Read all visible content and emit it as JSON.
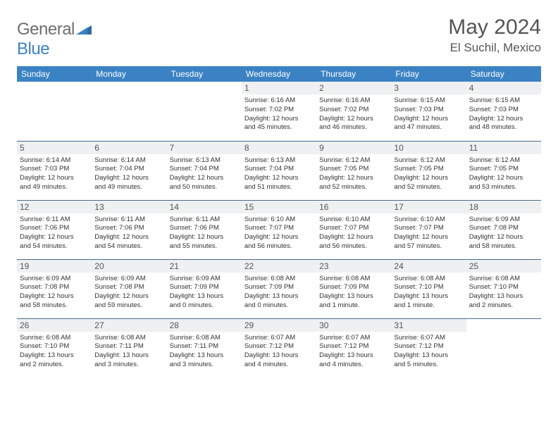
{
  "logo": {
    "line1": "General",
    "line2": "Blue"
  },
  "title": "May 2024",
  "location": "El Suchil, Mexico",
  "header_bg": "#3b82c4",
  "day_headers": [
    "Sunday",
    "Monday",
    "Tuesday",
    "Wednesday",
    "Thursday",
    "Friday",
    "Saturday"
  ],
  "weeks": [
    [
      {
        "empty": true
      },
      {
        "empty": true
      },
      {
        "empty": true
      },
      {
        "num": "1",
        "sunrise": "Sunrise: 6:16 AM",
        "sunset": "Sunset: 7:02 PM",
        "day1": "Daylight: 12 hours",
        "day2": "and 45 minutes."
      },
      {
        "num": "2",
        "sunrise": "Sunrise: 6:16 AM",
        "sunset": "Sunset: 7:02 PM",
        "day1": "Daylight: 12 hours",
        "day2": "and 46 minutes."
      },
      {
        "num": "3",
        "sunrise": "Sunrise: 6:15 AM",
        "sunset": "Sunset: 7:03 PM",
        "day1": "Daylight: 12 hours",
        "day2": "and 47 minutes."
      },
      {
        "num": "4",
        "sunrise": "Sunrise: 6:15 AM",
        "sunset": "Sunset: 7:03 PM",
        "day1": "Daylight: 12 hours",
        "day2": "and 48 minutes."
      }
    ],
    [
      {
        "num": "5",
        "sunrise": "Sunrise: 6:14 AM",
        "sunset": "Sunset: 7:03 PM",
        "day1": "Daylight: 12 hours",
        "day2": "and 49 minutes."
      },
      {
        "num": "6",
        "sunrise": "Sunrise: 6:14 AM",
        "sunset": "Sunset: 7:04 PM",
        "day1": "Daylight: 12 hours",
        "day2": "and 49 minutes."
      },
      {
        "num": "7",
        "sunrise": "Sunrise: 6:13 AM",
        "sunset": "Sunset: 7:04 PM",
        "day1": "Daylight: 12 hours",
        "day2": "and 50 minutes."
      },
      {
        "num": "8",
        "sunrise": "Sunrise: 6:13 AM",
        "sunset": "Sunset: 7:04 PM",
        "day1": "Daylight: 12 hours",
        "day2": "and 51 minutes."
      },
      {
        "num": "9",
        "sunrise": "Sunrise: 6:12 AM",
        "sunset": "Sunset: 7:05 PM",
        "day1": "Daylight: 12 hours",
        "day2": "and 52 minutes."
      },
      {
        "num": "10",
        "sunrise": "Sunrise: 6:12 AM",
        "sunset": "Sunset: 7:05 PM",
        "day1": "Daylight: 12 hours",
        "day2": "and 52 minutes."
      },
      {
        "num": "11",
        "sunrise": "Sunrise: 6:12 AM",
        "sunset": "Sunset: 7:05 PM",
        "day1": "Daylight: 12 hours",
        "day2": "and 53 minutes."
      }
    ],
    [
      {
        "num": "12",
        "sunrise": "Sunrise: 6:11 AM",
        "sunset": "Sunset: 7:06 PM",
        "day1": "Daylight: 12 hours",
        "day2": "and 54 minutes."
      },
      {
        "num": "13",
        "sunrise": "Sunrise: 6:11 AM",
        "sunset": "Sunset: 7:06 PM",
        "day1": "Daylight: 12 hours",
        "day2": "and 54 minutes."
      },
      {
        "num": "14",
        "sunrise": "Sunrise: 6:11 AM",
        "sunset": "Sunset: 7:06 PM",
        "day1": "Daylight: 12 hours",
        "day2": "and 55 minutes."
      },
      {
        "num": "15",
        "sunrise": "Sunrise: 6:10 AM",
        "sunset": "Sunset: 7:07 PM",
        "day1": "Daylight: 12 hours",
        "day2": "and 56 minutes."
      },
      {
        "num": "16",
        "sunrise": "Sunrise: 6:10 AM",
        "sunset": "Sunset: 7:07 PM",
        "day1": "Daylight: 12 hours",
        "day2": "and 56 minutes."
      },
      {
        "num": "17",
        "sunrise": "Sunrise: 6:10 AM",
        "sunset": "Sunset: 7:07 PM",
        "day1": "Daylight: 12 hours",
        "day2": "and 57 minutes."
      },
      {
        "num": "18",
        "sunrise": "Sunrise: 6:09 AM",
        "sunset": "Sunset: 7:08 PM",
        "day1": "Daylight: 12 hours",
        "day2": "and 58 minutes."
      }
    ],
    [
      {
        "num": "19",
        "sunrise": "Sunrise: 6:09 AM",
        "sunset": "Sunset: 7:08 PM",
        "day1": "Daylight: 12 hours",
        "day2": "and 58 minutes."
      },
      {
        "num": "20",
        "sunrise": "Sunrise: 6:09 AM",
        "sunset": "Sunset: 7:08 PM",
        "day1": "Daylight: 12 hours",
        "day2": "and 59 minutes."
      },
      {
        "num": "21",
        "sunrise": "Sunrise: 6:09 AM",
        "sunset": "Sunset: 7:09 PM",
        "day1": "Daylight: 13 hours",
        "day2": "and 0 minutes."
      },
      {
        "num": "22",
        "sunrise": "Sunrise: 6:08 AM",
        "sunset": "Sunset: 7:09 PM",
        "day1": "Daylight: 13 hours",
        "day2": "and 0 minutes."
      },
      {
        "num": "23",
        "sunrise": "Sunrise: 6:08 AM",
        "sunset": "Sunset: 7:09 PM",
        "day1": "Daylight: 13 hours",
        "day2": "and 1 minute."
      },
      {
        "num": "24",
        "sunrise": "Sunrise: 6:08 AM",
        "sunset": "Sunset: 7:10 PM",
        "day1": "Daylight: 13 hours",
        "day2": "and 1 minute."
      },
      {
        "num": "25",
        "sunrise": "Sunrise: 6:08 AM",
        "sunset": "Sunset: 7:10 PM",
        "day1": "Daylight: 13 hours",
        "day2": "and 2 minutes."
      }
    ],
    [
      {
        "num": "26",
        "sunrise": "Sunrise: 6:08 AM",
        "sunset": "Sunset: 7:10 PM",
        "day1": "Daylight: 13 hours",
        "day2": "and 2 minutes."
      },
      {
        "num": "27",
        "sunrise": "Sunrise: 6:08 AM",
        "sunset": "Sunset: 7:11 PM",
        "day1": "Daylight: 13 hours",
        "day2": "and 3 minutes."
      },
      {
        "num": "28",
        "sunrise": "Sunrise: 6:08 AM",
        "sunset": "Sunset: 7:11 PM",
        "day1": "Daylight: 13 hours",
        "day2": "and 3 minutes."
      },
      {
        "num": "29",
        "sunrise": "Sunrise: 6:07 AM",
        "sunset": "Sunset: 7:12 PM",
        "day1": "Daylight: 13 hours",
        "day2": "and 4 minutes."
      },
      {
        "num": "30",
        "sunrise": "Sunrise: 6:07 AM",
        "sunset": "Sunset: 7:12 PM",
        "day1": "Daylight: 13 hours",
        "day2": "and 4 minutes."
      },
      {
        "num": "31",
        "sunrise": "Sunrise: 6:07 AM",
        "sunset": "Sunset: 7:12 PM",
        "day1": "Daylight: 13 hours",
        "day2": "and 5 minutes."
      },
      {
        "empty": true
      }
    ]
  ]
}
